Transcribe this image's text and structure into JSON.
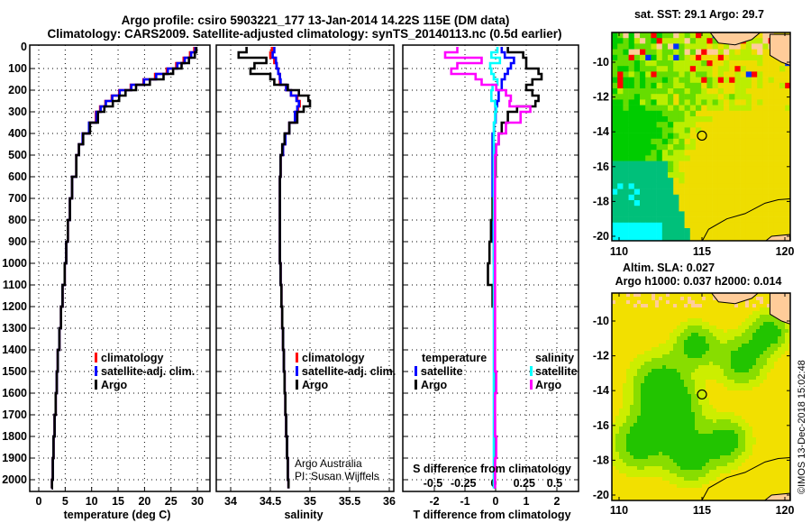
{
  "title": {
    "line1": "Argo profile: csiro 5903221_177 13-Jan-2014 14.22S 115E (DM data)",
    "line2": "Climatology: CARS2009. Satellite-adjusted climatology: synTS_20140113.nc (0.5d earlier)"
  },
  "watermark": "©IMOS 13-Dec-2018 15:02:48",
  "credit": {
    "line1": "Argo Australia",
    "line2": "PI: Susan Wijffels"
  },
  "depth_ticks": [
    0,
    100,
    200,
    300,
    400,
    500,
    600,
    700,
    800,
    900,
    1000,
    1100,
    1200,
    1300,
    1400,
    1500,
    1600,
    1700,
    1800,
    1900,
    2000
  ],
  "chart_data": [
    {
      "type": "line",
      "xlabel": "temperature (deg C)",
      "ylabel": "depth",
      "xlim": [
        -1.5,
        32
      ],
      "ylim": [
        2050,
        0
      ],
      "xticks": [
        0,
        5,
        10,
        15,
        20,
        25,
        30
      ],
      "grid": true,
      "depth": [
        0,
        25,
        50,
        75,
        100,
        125,
        150,
        175,
        200,
        225,
        250,
        275,
        300,
        350,
        400,
        450,
        500,
        600,
        700,
        800,
        900,
        1000,
        1100,
        1200,
        1300,
        1400,
        1500,
        1600,
        1700,
        1800,
        1900,
        2000,
        2040
      ],
      "series": [
        {
          "name": "climatology",
          "color": "#ff0000",
          "values": [
            29.4,
            28.6,
            27.4,
            26.0,
            24.2,
            22.0,
            19.8,
            17.4,
            15.2,
            13.8,
            12.6,
            11.6,
            10.8,
            9.5,
            8.3,
            7.6,
            7.1,
            6.3,
            5.9,
            5.5,
            5.2,
            4.9,
            4.5,
            4.2,
            3.9,
            3.6,
            3.4,
            3.2,
            3.0,
            2.8,
            2.65,
            2.5,
            2.45
          ]
        },
        {
          "name": "satellite-adj. clim.",
          "color": "#0000ff",
          "values": [
            29.6,
            28.8,
            27.6,
            26.2,
            24.4,
            22.2,
            19.9,
            17.5,
            15.3,
            13.9,
            12.7,
            11.7,
            10.9,
            9.5,
            8.3,
            7.6,
            7.1,
            6.3,
            5.9,
            5.5,
            5.2,
            4.9,
            4.5,
            4.2,
            3.9,
            3.6,
            3.4,
            3.2,
            3.0,
            2.8,
            2.65,
            2.5,
            2.45
          ]
        },
        {
          "name": "Argo",
          "color": "#000000",
          "values": [
            29.8,
            29.5,
            28.4,
            27.0,
            25.4,
            23.6,
            21.0,
            18.4,
            16.4,
            15.2,
            14.0,
            12.4,
            11.2,
            9.7,
            8.4,
            7.6,
            7.1,
            6.3,
            5.9,
            5.5,
            5.2,
            4.9,
            4.5,
            4.2,
            3.9,
            3.6,
            3.4,
            3.2,
            3.0,
            2.8,
            2.65,
            2.5,
            2.45
          ]
        }
      ]
    },
    {
      "type": "line",
      "xlabel": "salinity",
      "ylabel": "depth",
      "xlim": [
        33.8,
        36.1
      ],
      "ylim": [
        2050,
        0
      ],
      "xticks": [
        34,
        34.5,
        35,
        35.5,
        36
      ],
      "grid": true,
      "depth": [
        0,
        25,
        50,
        75,
        100,
        125,
        150,
        175,
        200,
        225,
        250,
        275,
        300,
        350,
        400,
        450,
        500,
        600,
        700,
        800,
        900,
        1000,
        1100,
        1200,
        1300,
        1400,
        1500,
        1600,
        1700,
        1800,
        1900,
        2000,
        2040
      ],
      "series": [
        {
          "name": "climatology",
          "color": "#ff0000",
          "values": [
            34.52,
            34.5,
            34.55,
            34.58,
            34.6,
            34.62,
            34.62,
            34.7,
            34.76,
            34.84,
            34.87,
            34.85,
            34.82,
            34.74,
            34.69,
            34.66,
            34.63,
            34.62,
            34.62,
            34.62,
            34.62,
            34.63,
            34.64,
            34.65,
            34.66,
            34.67,
            34.68,
            34.69,
            34.7,
            34.71,
            34.72,
            34.73,
            34.73
          ]
        },
        {
          "name": "satellite-adj. clim.",
          "color": "#0000ff",
          "values": [
            34.55,
            34.53,
            34.57,
            34.58,
            34.6,
            34.62,
            34.63,
            34.7,
            34.76,
            34.83,
            34.86,
            34.84,
            34.81,
            34.74,
            34.69,
            34.66,
            34.63,
            34.62,
            34.62,
            34.62,
            34.62,
            34.63,
            34.64,
            34.65,
            34.66,
            34.67,
            34.68,
            34.69,
            34.7,
            34.71,
            34.72,
            34.73,
            34.73
          ]
        },
        {
          "name": "Argo",
          "color": "#000000",
          "values": [
            34.2,
            34.1,
            34.45,
            34.3,
            34.25,
            34.5,
            34.55,
            34.72,
            34.86,
            34.98,
            35.0,
            34.92,
            34.84,
            34.74,
            34.68,
            34.65,
            34.63,
            34.62,
            34.62,
            34.62,
            34.62,
            34.63,
            34.64,
            34.65,
            34.66,
            34.67,
            34.68,
            34.69,
            34.7,
            34.71,
            34.72,
            34.73,
            34.73
          ]
        }
      ]
    },
    {
      "type": "line",
      "xlabel": "T difference from climatology",
      "x2label": "S difference from climatology",
      "ylabel": "depth",
      "xlim": [
        -3,
        2.8
      ],
      "x2lim": [
        -0.75,
        0.7
      ],
      "ylim": [
        2050,
        0
      ],
      "xticks": [
        -2,
        -1,
        0,
        1,
        2
      ],
      "x2ticks": [
        -0.5,
        -0.25,
        0,
        0.25,
        0.5
      ],
      "grid": true,
      "legend_groups": [
        "temperature",
        "salinity"
      ],
      "depth": [
        0,
        25,
        50,
        75,
        100,
        125,
        150,
        175,
        200,
        225,
        250,
        275,
        300,
        350,
        400,
        450,
        500,
        600,
        700,
        800,
        900,
        1000,
        1100,
        1200,
        1300,
        1400,
        1500,
        1600,
        1700,
        1800,
        1900,
        2000,
        2040
      ],
      "series": [
        {
          "name": "satellite",
          "group": "temperature",
          "axis": "T",
          "color": "#0000ff",
          "values": [
            0.2,
            0.3,
            0.6,
            0.5,
            0.4,
            0.3,
            0.2,
            0.2,
            0.1,
            0.1,
            0.05,
            0,
            0,
            -0.05,
            -0.1,
            -0.1,
            -0.1,
            -0.1,
            -0.08,
            -0.08,
            -0.06,
            -0.05,
            -0.05,
            -0.04,
            -0.04,
            -0.03,
            -0.03,
            -0.03,
            -0.02,
            -0.02,
            -0.02,
            -0.02,
            -0.02
          ]
        },
        {
          "name": "Argo",
          "group": "temperature",
          "axis": "T",
          "color": "#000000",
          "values": [
            0.4,
            0.9,
            1.0,
            1.0,
            1.4,
            1.5,
            1.2,
            1.0,
            1.2,
            1.4,
            1.3,
            0.7,
            0.4,
            0.2,
            0.1,
            0,
            0,
            -0.05,
            -0.1,
            -0.15,
            -0.2,
            -0.25,
            -0.1,
            -0.05,
            -0.05,
            -0.05,
            -0.05,
            -0.04,
            -0.04,
            -0.03,
            -0.03,
            -0.03,
            -0.03
          ]
        },
        {
          "name": "satellite",
          "group": "salinity",
          "axis": "S",
          "color": "#00ffff",
          "values": [
            0.03,
            -0.02,
            0.05,
            -0.03,
            -0.02,
            0,
            0.03,
            -0.01,
            -0.02,
            -0.02,
            0.01,
            0.02,
            0.01,
            0,
            0,
            0,
            0,
            0,
            0,
            0,
            0,
            0,
            0,
            0,
            0,
            0,
            0,
            0,
            0,
            0,
            0,
            0,
            0
          ]
        },
        {
          "name": "Argo",
          "group": "salinity",
          "axis": "S",
          "color": "#ff00ff",
          "values": [
            -0.3,
            -0.4,
            -0.1,
            -0.3,
            -0.35,
            -0.15,
            -0.1,
            0.02,
            0.1,
            0.14,
            0.13,
            0.3,
            0.22,
            0.1,
            0.04,
            0.02,
            0.01,
            0.01,
            0.01,
            0.01,
            0.01,
            0.01,
            0.01,
            0.01,
            0.01,
            0.01,
            0.02,
            0.01,
            0.01,
            0.02,
            0.01,
            0.01,
            0.01
          ]
        }
      ]
    }
  ],
  "maps": [
    {
      "title_lines": [
        "sat. SST: 29.1 Argo: 29.7"
      ],
      "lon_ticks": [
        110,
        115,
        120
      ],
      "lat_ticks": [
        -10,
        -12,
        -14,
        -16,
        -18,
        -20
      ],
      "float_position": {
        "lon": 115,
        "lat": -14.22
      },
      "colors": {
        "land": "#ffcc99",
        "cold": "#00ffff",
        "teal": "#00c07a",
        "green": "#00cc00",
        "lightgreen": "#66dd00",
        "yellowgreen": "#bbee00",
        "yellow": "#eedd00",
        "hot": "#ff0000"
      }
    },
    {
      "title_lines": [
        "Altim. SLA: 0.027",
        "Argo h1000: 0.037 h2000: 0.014"
      ],
      "lon_ticks": [
        110,
        115,
        120
      ],
      "lat_ticks": [
        -10,
        -12,
        -14,
        -16,
        -18,
        -20
      ],
      "float_position": {
        "lon": 115,
        "lat": -14.22
      },
      "colors": {
        "land": "#ffcc99",
        "low": "#22c400",
        "mid": "#88dd00",
        "midhigh": "#ccee00",
        "high": "#f2e000"
      }
    }
  ]
}
